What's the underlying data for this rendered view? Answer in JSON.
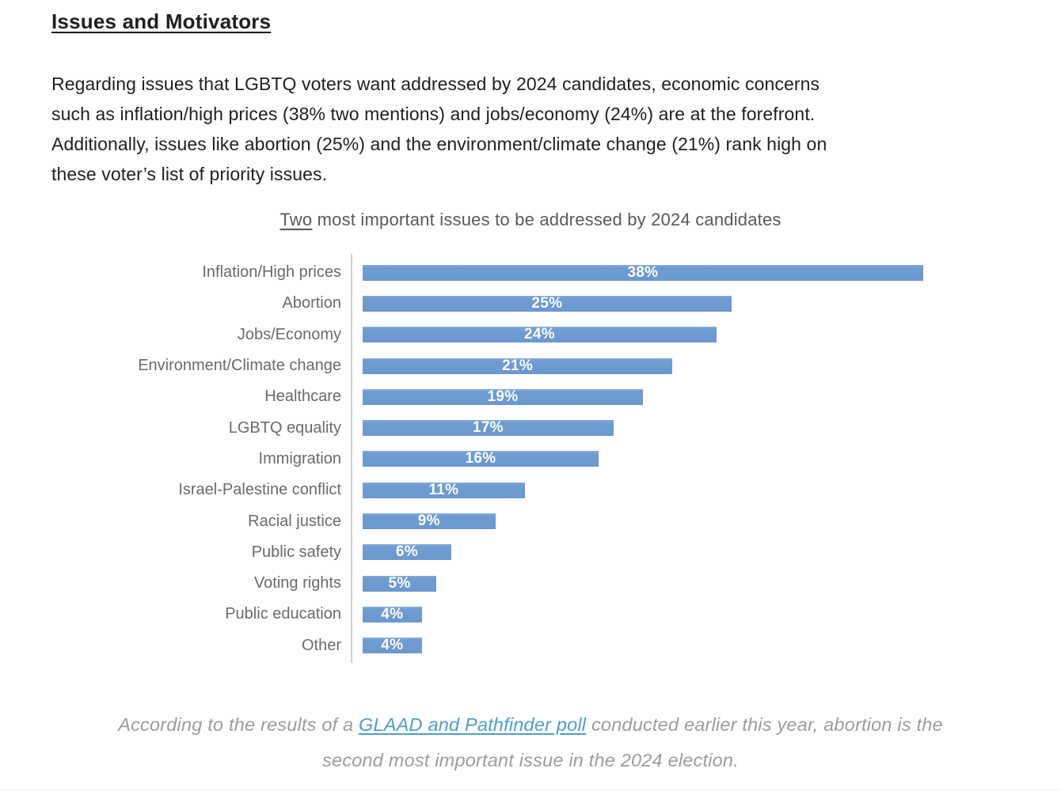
{
  "page": {
    "heading": "Issues and Motivators",
    "paragraph": "Regarding issues that LGBTQ voters want addressed by 2024 candidates, economic concerns\nsuch as inflation/high prices (38% two mentions) and jobs/economy (24%) are at the forefront.\nAdditionally, issues like abortion (25%) and the environment/climate change (21%) rank high on\nthese voter’s list of priority issues.",
    "footer": {
      "line1_prefix": "According to the results of a ",
      "link_text": "GLAAD and Pathfinder poll",
      "line1_suffix": " conducted earlier this year, abortion is the",
      "line2": "second most important issue in the 2024 election."
    }
  },
  "chart_data": {
    "type": "bar",
    "orientation": "horizontal",
    "title": "Two most important issues to be addressed by 2024 candidates",
    "title_underlined_word": "Two",
    "title_rest": " most important issues to be addressed by 2024 candidates",
    "categories": [
      "Inflation/High prices",
      "Abortion",
      "Jobs/Economy",
      "Environment/Climate change",
      "Healthcare",
      "LGBTQ equality",
      "Immigration",
      "Israel-Palestine conflict",
      "Racial justice",
      "Public safety",
      "Voting rights",
      "Public education",
      "Other"
    ],
    "values": [
      38,
      25,
      24,
      21,
      19,
      17,
      16,
      11,
      9,
      6,
      5,
      4,
      4
    ],
    "data_labels": [
      "38%",
      "25%",
      "24%",
      "21%",
      "19%",
      "17%",
      "16%",
      "11%",
      "9%",
      "6%",
      "5%",
      "4%",
      "4%"
    ],
    "xlim": [
      0,
      40
    ],
    "grid": false,
    "legend_position": "none",
    "bar_color": "#6b98cf",
    "data_label_color": "#ffffff",
    "category_label_color": "#6a6a6a",
    "title_color": "#595959",
    "axis_line_color": "#ccd1d6"
  }
}
